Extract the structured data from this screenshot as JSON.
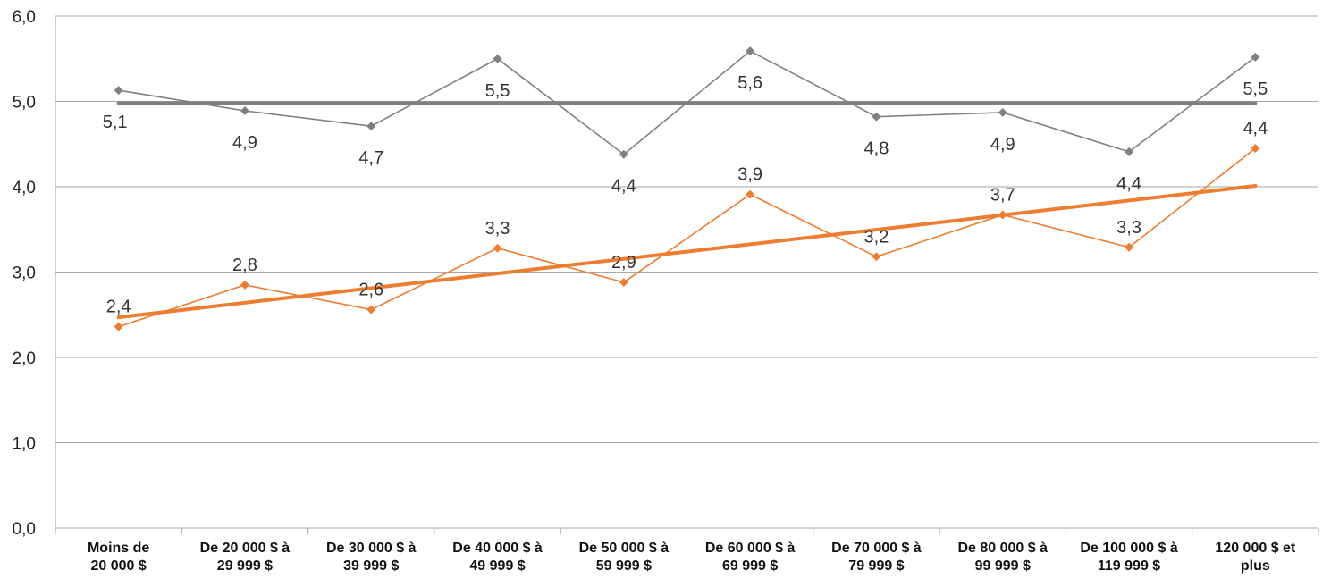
{
  "chart_data": {
    "type": "line",
    "title": "",
    "xlabel": "",
    "ylabel": "",
    "ylim": [
      0,
      6
    ],
    "yticks": [
      "0,0",
      "1,0",
      "2,0",
      "3,0",
      "4,0",
      "5,0",
      "6,0"
    ],
    "grid": true,
    "categories": [
      [
        "Moins de",
        "20 000 $"
      ],
      [
        "De 20 000 $ à",
        "29 999 $"
      ],
      [
        "De 30 000 $ à",
        "39 999 $"
      ],
      [
        "De 40 000 $ à",
        "49 999 $"
      ],
      [
        "De 50 000 $ à",
        "59 999 $"
      ],
      [
        "De 60 000 $ à",
        "69 999 $"
      ],
      [
        "De 70 000 $ à",
        "79 999 $"
      ],
      [
        "De 80 000 $ à",
        "99 999 $"
      ],
      [
        "De 100 000 $ à",
        "119 999 $"
      ],
      [
        "120 000 $ et",
        "plus"
      ]
    ],
    "series": [
      {
        "values": [
          5.13,
          4.89,
          4.71,
          5.5,
          4.38,
          5.59,
          4.82,
          4.87,
          4.41,
          5.52
        ],
        "labels": [
          "5,1",
          "4,9",
          "4,7",
          "5,5",
          "4,4",
          "5,6",
          "4,8",
          "4,9",
          "4,4",
          "5,5"
        ],
        "label_position": [
          "below",
          "below",
          "below",
          "below",
          "below",
          "below",
          "below",
          "below",
          "below",
          "below"
        ],
        "color": "#808080",
        "trend": [
          4.98,
          4.98
        ]
      },
      {
        "values": [
          2.36,
          2.85,
          2.56,
          3.28,
          2.88,
          3.91,
          3.18,
          3.67,
          3.29,
          4.45
        ],
        "labels": [
          "2,4",
          "2,8",
          "2,6",
          "3,3",
          "2,9",
          "3,9",
          "3,2",
          "3,7",
          "3,3",
          "4,4"
        ],
        "label_position": [
          "above",
          "above",
          "above",
          "above",
          "above",
          "above",
          "above",
          "above",
          "above",
          "above"
        ],
        "color": "#ED7D31",
        "trend": [
          2.47,
          4.01
        ]
      }
    ]
  }
}
